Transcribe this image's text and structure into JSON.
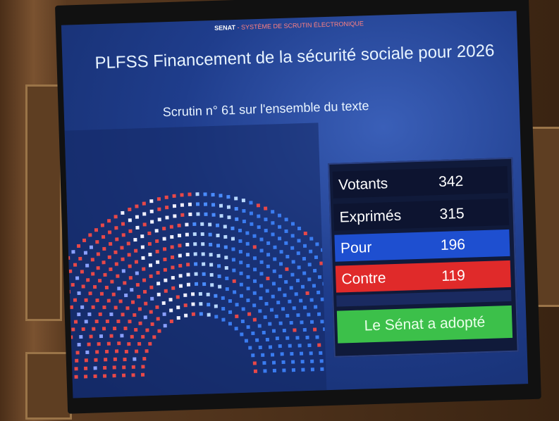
{
  "header": {
    "senat": "SENAT",
    "system": "- SYSTÈME DE SCRUTIN ÉLECTRONIQUE"
  },
  "title": "PLFSS Financement de la sécurité sociale pour 2026",
  "subtitle": "Scrutin n° 61 sur l'ensemble du texte",
  "results": [
    {
      "label": "Votants",
      "value": 342
    },
    {
      "label": "Exprimés",
      "value": 315
    },
    {
      "label": "Pour",
      "value": 196
    },
    {
      "label": "Contre",
      "value": 119
    }
  ],
  "verdict": "Le Sénat a adopté"
}
